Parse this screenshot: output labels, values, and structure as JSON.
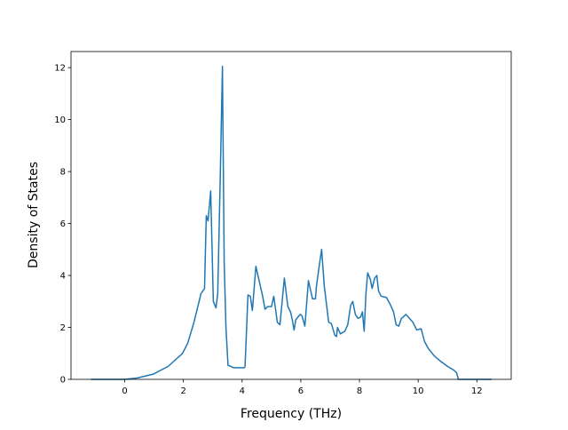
{
  "chart_data": {
    "type": "line",
    "xlabel": "Frequency (THz)",
    "ylabel": "Density of States",
    "xlim": [
      -1.83,
      13.17
    ],
    "ylim": [
      0,
      12.62
    ],
    "xticks": [
      0,
      2,
      4,
      6,
      8,
      10,
      12
    ],
    "yticks": [
      0,
      2,
      4,
      6,
      8,
      10,
      12
    ],
    "grid": false,
    "series": [
      {
        "color": "#1f77b4",
        "x": [
          -1.15,
          0,
          0.42,
          0.97,
          1.48,
          1.97,
          2.15,
          2.36,
          2.6,
          2.72,
          2.78,
          2.84,
          2.93,
          3.02,
          3.11,
          3.17,
          3.26,
          3.33,
          3.39,
          3.45,
          3.52,
          3.7,
          4.08,
          4.1,
          4.13,
          4.2,
          4.28,
          4.35,
          4.47,
          4.7,
          4.78,
          4.87,
          5.0,
          5.08,
          5.2,
          5.29,
          5.44,
          5.56,
          5.65,
          5.71,
          5.77,
          5.83,
          5.98,
          6.04,
          6.14,
          6.26,
          6.4,
          6.5,
          6.53,
          6.62,
          6.71,
          6.8,
          6.95,
          7.04,
          7.16,
          7.22,
          7.25,
          7.35,
          7.5,
          7.6,
          7.7,
          7.77,
          7.86,
          7.95,
          8.04,
          8.1,
          8.16,
          8.22,
          8.28,
          8.37,
          8.43,
          8.52,
          8.59,
          8.65,
          8.74,
          8.92,
          9.04,
          9.16,
          9.25,
          9.34,
          9.43,
          9.49,
          9.58,
          9.7,
          9.82,
          9.95,
          10.1,
          10.22,
          10.34,
          10.55,
          10.76,
          11.0,
          11.22,
          11.31,
          11.37,
          12.5
        ],
        "values": [
          0,
          0,
          0.05,
          0.2,
          0.5,
          1.0,
          1.4,
          2.2,
          3.3,
          3.5,
          6.3,
          6.1,
          7.25,
          3.0,
          2.75,
          3.3,
          8.0,
          12.05,
          4.5,
          2.0,
          0.55,
          0.45,
          0.45,
          0.5,
          1.3,
          3.25,
          3.2,
          2.65,
          4.35,
          3.2,
          2.7,
          2.8,
          2.8,
          3.2,
          2.2,
          2.1,
          3.9,
          2.8,
          2.6,
          2.3,
          1.9,
          2.3,
          2.5,
          2.45,
          2.05,
          3.8,
          3.1,
          3.1,
          3.55,
          4.3,
          5.0,
          3.6,
          2.2,
          2.15,
          1.7,
          1.65,
          2.0,
          1.75,
          1.85,
          2.1,
          2.85,
          3.0,
          2.5,
          2.35,
          2.4,
          2.6,
          1.85,
          3.3,
          4.1,
          3.85,
          3.5,
          3.9,
          4.0,
          3.4,
          3.2,
          3.15,
          2.9,
          2.6,
          2.1,
          2.05,
          2.35,
          2.4,
          2.5,
          2.35,
          2.2,
          1.9,
          1.95,
          1.45,
          1.2,
          0.9,
          0.7,
          0.5,
          0.35,
          0.25,
          0,
          0
        ]
      }
    ]
  }
}
